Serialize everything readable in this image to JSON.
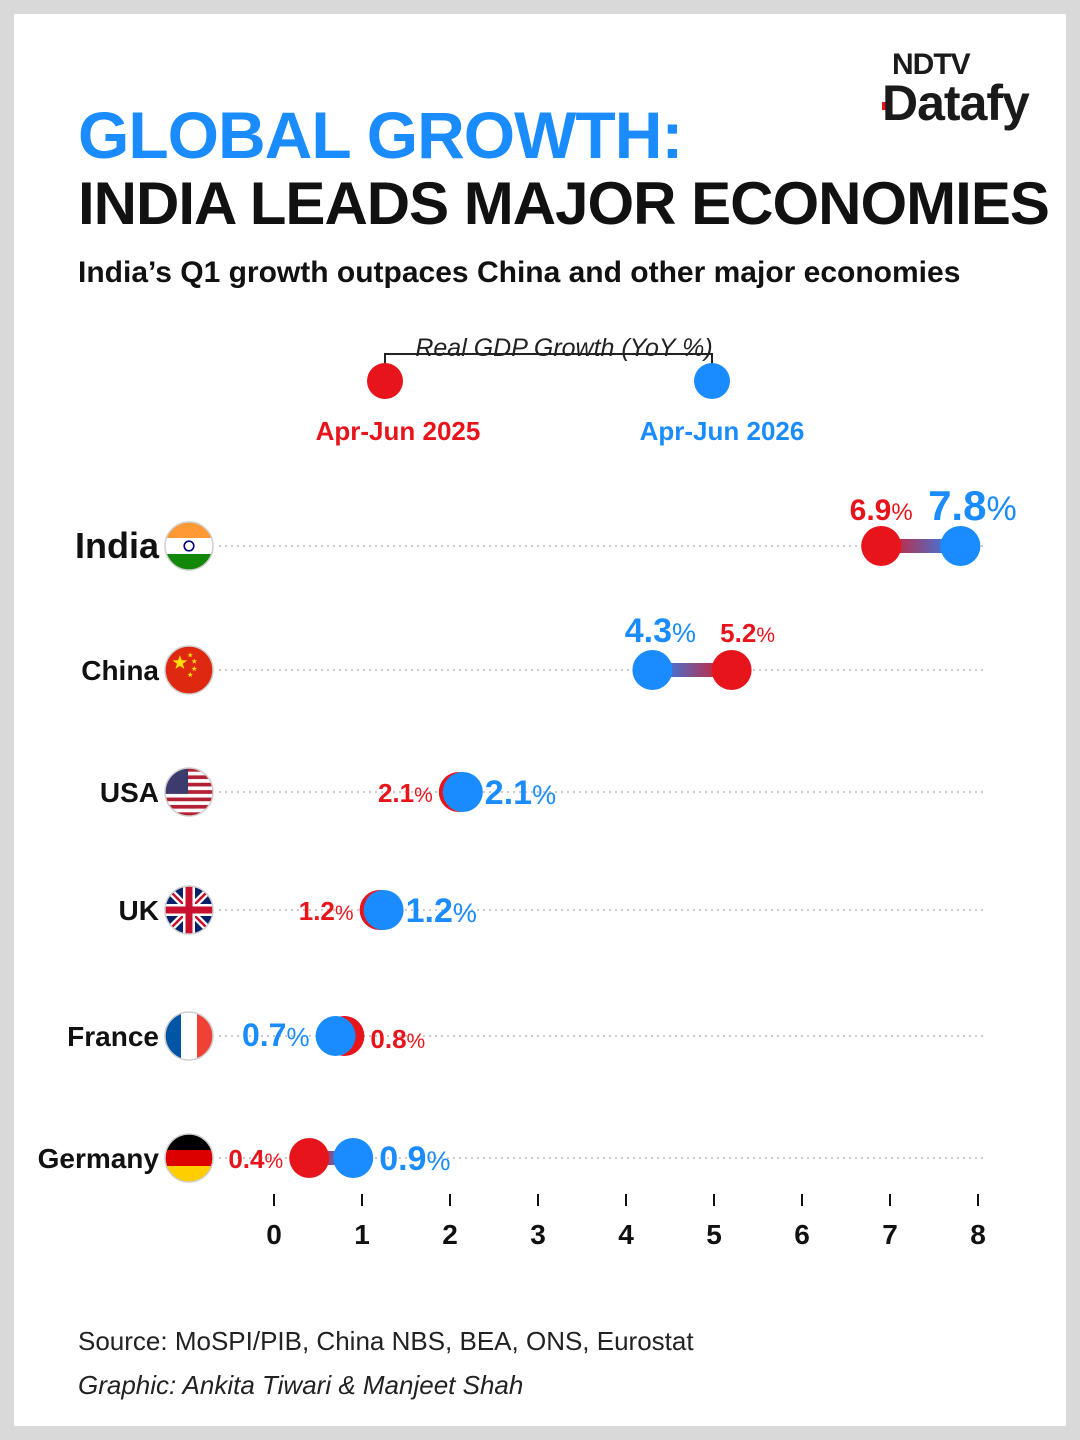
{
  "brand": {
    "top": "NDTV",
    "main": "Datafy"
  },
  "title_line1": "GLOBAL GROWTH:",
  "title_line2": "INDIA LEADS MAJOR ECONOMIES",
  "subtitle": "India’s Q1 growth outpaces China and other major economies",
  "legend": {
    "title": "Real GDP Growth (YoY %)",
    "series_a": "Apr-Jun 2025",
    "series_b": "Apr-Jun 2026"
  },
  "colors": {
    "series_a": "#e8141c",
    "series_b": "#1a8cff"
  },
  "source": "Source: MoSPI/PIB, China NBS, BEA, ONS, Eurostat",
  "credit": "Graphic: Ankita Tiwari & Manjeet Shah",
  "chart_data": {
    "type": "dumbbell",
    "categories": [
      "India",
      "China",
      "USA",
      "UK",
      "France",
      "Germany"
    ],
    "flags": [
      "india-flag-icon",
      "china-flag-icon",
      "usa-flag-icon",
      "uk-flag-icon",
      "france-flag-icon",
      "germany-flag-icon"
    ],
    "series": [
      {
        "name": "Apr-Jun 2025",
        "values": [
          6.9,
          5.2,
          2.1,
          1.2,
          0.8,
          0.4
        ],
        "labels": [
          "6.9",
          "5.2",
          "2.1",
          "1.2",
          "0.8",
          "0.4"
        ]
      },
      {
        "name": "Apr-Jun 2026",
        "values": [
          7.8,
          4.3,
          2.1,
          1.2,
          0.7,
          0.9
        ],
        "labels": [
          "7.8",
          "4.3",
          "2.1",
          "1.2",
          "0.7",
          "0.9"
        ]
      }
    ],
    "value_suffix": "%",
    "xlim": [
      0,
      8
    ],
    "xticks": [
      "0",
      "1",
      "2",
      "3",
      "4",
      "5",
      "6",
      "7",
      "8"
    ],
    "grid": "dotted horizontal"
  }
}
